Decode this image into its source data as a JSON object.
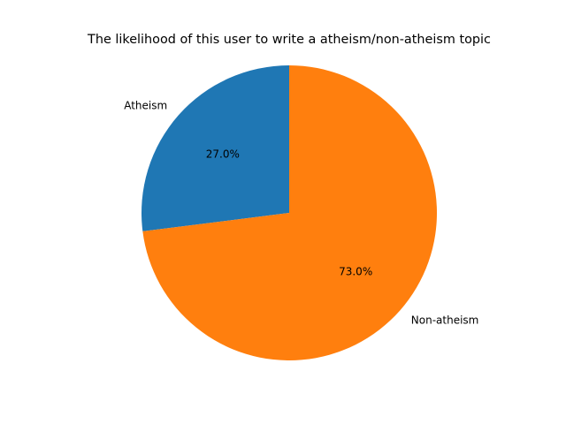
{
  "chart_data": {
    "type": "pie",
    "title": "The likelihood of this user to write a atheism/non-atheism topic",
    "labels": [
      "Atheism",
      "Non-atheism"
    ],
    "values": [
      27.0,
      73.0
    ],
    "percent_labels": [
      "27.0%",
      "73.0%"
    ],
    "colors": [
      "#1f77b4",
      "#ff7f0e"
    ],
    "start_angle_deg": 90,
    "direction": "counterclockwise",
    "legend": "none",
    "grid": false
  }
}
